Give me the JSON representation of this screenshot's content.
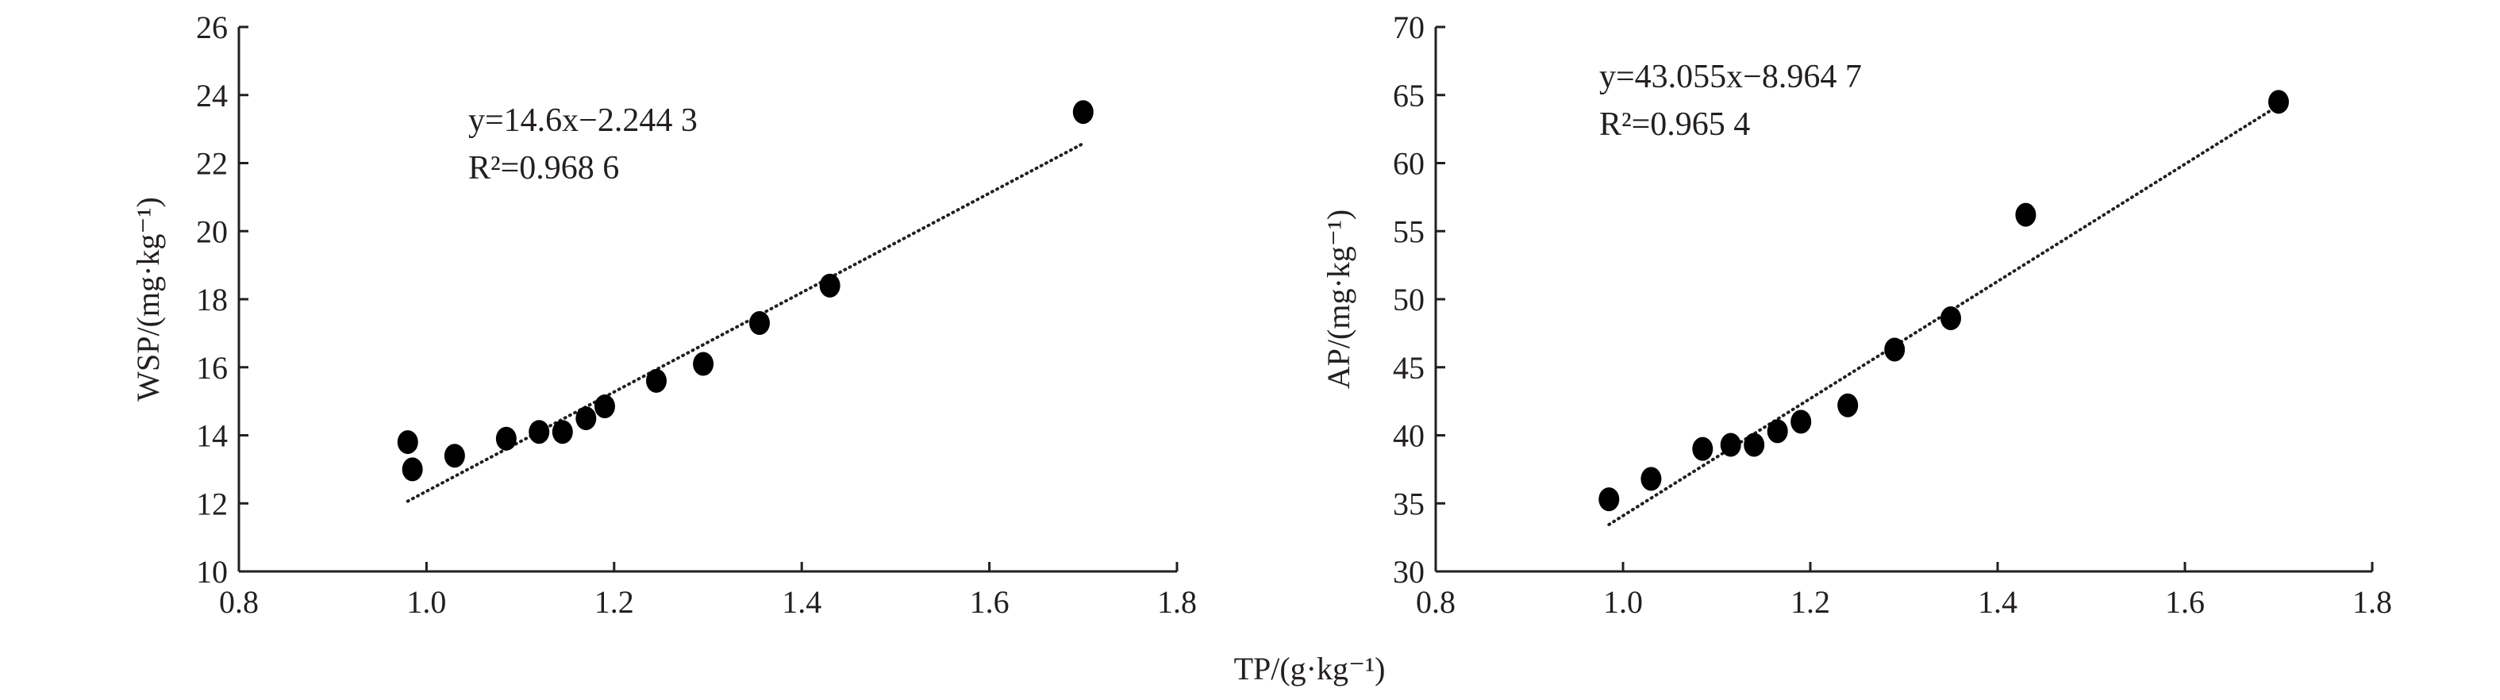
{
  "chart_data": [
    {
      "type": "scatter",
      "xlabel": "TP/(g·kg⁻¹)",
      "ylabel": "WSP/(mg·kg⁻¹)",
      "xlim": [
        0.8,
        1.8
      ],
      "ylim": [
        10,
        26
      ],
      "xticks": [
        "0.8",
        "1.0",
        "1.2",
        "1.4",
        "1.6",
        "1.8"
      ],
      "yticks": [
        "10",
        "12",
        "14",
        "16",
        "18",
        "20",
        "22",
        "24",
        "26"
      ],
      "equation": "y=14.6x−2.244 3",
      "r2": "R²=0.968 6",
      "trend": {
        "slope": 14.6,
        "intercept": -2.2443,
        "x_range": [
          0.98,
          1.7
        ]
      },
      "points": [
        [
          0.98,
          13.8
        ],
        [
          0.985,
          13.0
        ],
        [
          1.03,
          13.4
        ],
        [
          1.085,
          13.9
        ],
        [
          1.12,
          14.1
        ],
        [
          1.145,
          14.1
        ],
        [
          1.17,
          14.5
        ],
        [
          1.19,
          14.85
        ],
        [
          1.245,
          15.6
        ],
        [
          1.295,
          16.1
        ],
        [
          1.355,
          17.3
        ],
        [
          1.43,
          18.4
        ],
        [
          1.7,
          23.5
        ]
      ],
      "grid": false
    },
    {
      "type": "scatter",
      "xlabel": "TP/(g·kg⁻¹)",
      "ylabel": "AP/(mg·kg⁻¹)",
      "xlim": [
        0.8,
        1.8
      ],
      "ylim": [
        30,
        70
      ],
      "xticks": [
        "0.8",
        "1.0",
        "1.2",
        "1.4",
        "1.6",
        "1.8"
      ],
      "yticks": [
        "30",
        "35",
        "40",
        "45",
        "50",
        "55",
        "60",
        "65",
        "70"
      ],
      "equation": "y=43.055x−8.964 7",
      "r2": "R²=0.965 4",
      "trend": {
        "slope": 43.055,
        "intercept": -8.9647,
        "x_range": [
          0.985,
          1.7
        ]
      },
      "points": [
        [
          0.985,
          35.3
        ],
        [
          1.03,
          36.8
        ],
        [
          1.085,
          39.0
        ],
        [
          1.115,
          39.3
        ],
        [
          1.14,
          39.3
        ],
        [
          1.165,
          40.3
        ],
        [
          1.19,
          41.0
        ],
        [
          1.24,
          42.2
        ],
        [
          1.29,
          46.3
        ],
        [
          1.35,
          48.6
        ],
        [
          1.43,
          56.2
        ],
        [
          1.7,
          64.5
        ]
      ],
      "grid": false
    }
  ],
  "shared_xlabel": "TP/(g·kg⁻¹)"
}
